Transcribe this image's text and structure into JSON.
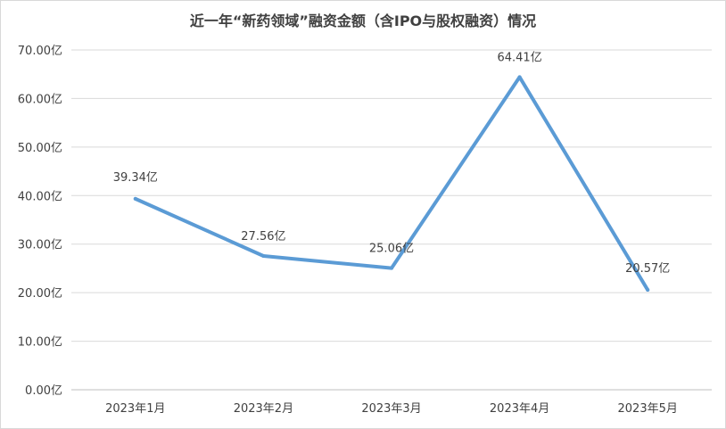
{
  "chart_data": {
    "type": "line",
    "title": "近一年“新药领域”融资金额（含IPO与股权融资）情况",
    "categories": [
      "2023年1月",
      "2023年2月",
      "2023年3月",
      "2023年4月",
      "2023年5月"
    ],
    "series": [
      {
        "values": [
          39.34,
          27.56,
          25.06,
          64.41,
          20.57
        ],
        "labels": [
          "39.34亿",
          "27.56亿",
          "25.06亿",
          "64.41亿",
          "20.57亿"
        ]
      }
    ],
    "yticks": [
      "0.00亿",
      "10.00亿",
      "20.00亿",
      "30.00亿",
      "40.00亿",
      "50.00亿",
      "60.00亿",
      "70.00亿"
    ],
    "ylim": [
      0,
      70
    ],
    "grid": true,
    "legend": "none",
    "line_color": "#5b9bd5",
    "grid_color": "#d9d9d9",
    "text_color": "#404040"
  }
}
